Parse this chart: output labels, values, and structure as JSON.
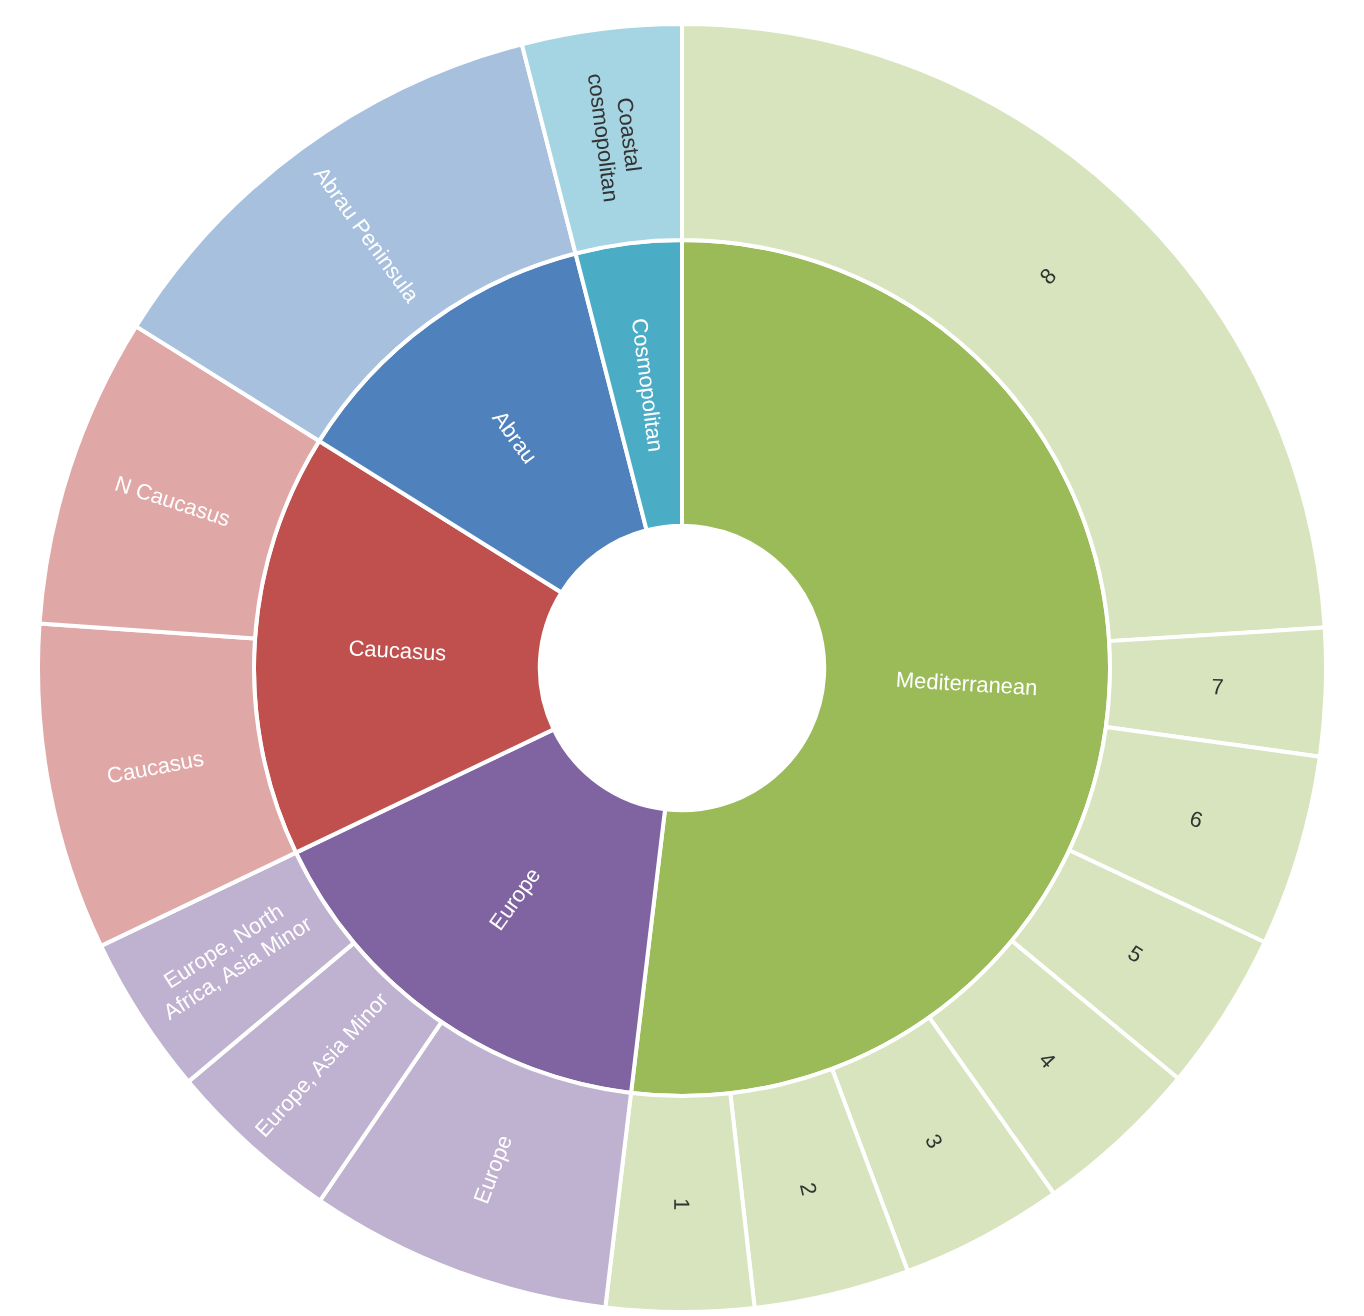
{
  "chart_data": [
    {
      "type": "donut",
      "categories": [
        "Mediterranean",
        "Europe",
        "Caucasus",
        "Abrau",
        "Cosmopolitan"
      ],
      "values": [
        51.9,
        16.0,
        16.0,
        12.1,
        4.0
      ],
      "colors": [
        "#9bbb59",
        "#8064a2",
        "#c0504d",
        "#4f81bd",
        "#4bacc6"
      ]
    },
    {
      "type": "donut",
      "categories": [
        "8",
        "7",
        "6",
        "5",
        "4",
        "3",
        "2",
        "1",
        "Europe",
        "Europe, Asia Minor",
        "Europe, North Africa, Asia Minor",
        "Caucasus",
        "N Caucasus",
        "Abrau Peninsula",
        "Coastal cosmopolitan"
      ],
      "values": [
        24.0,
        3.2,
        4.8,
        4.0,
        4.2,
        4.1,
        3.9,
        3.7,
        7.6,
        4.4,
        4.0,
        8.2,
        7.8,
        12.1,
        4.0
      ],
      "colors": [
        "#d7e4bd",
        "#d7e4bd",
        "#d7e4bd",
        "#d7e4bd",
        "#d7e4bd",
        "#d7e4bd",
        "#d7e4bd",
        "#d7e4bd",
        "#bfb1d0",
        "#bfb1d0",
        "#bfb1d0",
        "#dfa7a6",
        "#dfa7a6",
        "#a7c0de",
        "#a5d5e2"
      ]
    }
  ]
}
